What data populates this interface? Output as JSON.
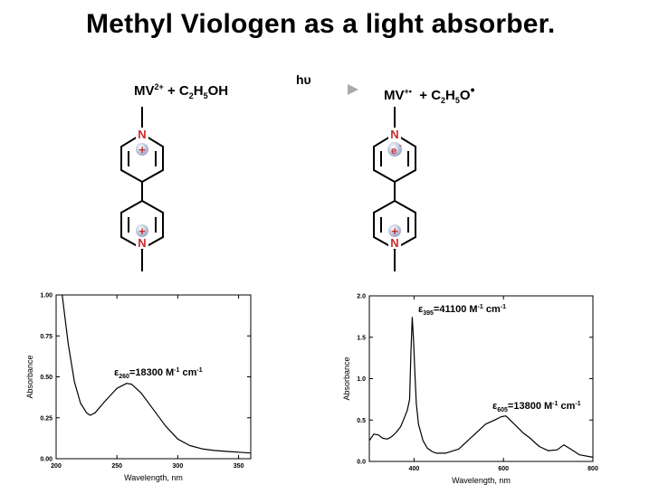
{
  "title": "Methyl Viologen as a light absorber.",
  "reaction": {
    "left_mv": "MV",
    "left_mv_charge": "2+",
    "left_plus_ethanol": "+ C",
    "sub2": "2",
    "H": "H",
    "sub5": "5",
    "OH": "OH",
    "arrow_label": "hυ",
    "right_mv": "MV",
    "right_mv_charge": "+•",
    "right_plus": "+ C",
    "O": "O",
    "radical_dot": "•"
  },
  "molecules": {
    "n_label": "N",
    "plus_label": "+",
    "electron_label": "e"
  },
  "chart_data": [
    {
      "type": "line",
      "xlabel": "Wavelength, nm",
      "ylabel": "Absorbance",
      "xlim": [
        200,
        360
      ],
      "ylim": [
        0,
        1.0
      ],
      "xticks": [
        "200",
        "250",
        "300",
        "350"
      ],
      "yticks": [
        "0.00",
        "0.25",
        "0.50",
        "0.75",
        "1.00"
      ],
      "annotation": {
        "eps": "ε",
        "sub": "260",
        "text": "=18300 M",
        "sup1": "-1",
        "cm": " cm",
        "sup2": "-1"
      },
      "series": [
        {
          "x": [
            205,
            210,
            215,
            220,
            225,
            228,
            232,
            240,
            250,
            258,
            262,
            270,
            280,
            290,
            300,
            310,
            320,
            330,
            340,
            350,
            360
          ],
          "y": [
            1.0,
            0.7,
            0.47,
            0.34,
            0.28,
            0.265,
            0.28,
            0.35,
            0.43,
            0.46,
            0.455,
            0.4,
            0.3,
            0.2,
            0.12,
            0.08,
            0.06,
            0.05,
            0.045,
            0.04,
            0.035
          ]
        }
      ]
    },
    {
      "type": "line",
      "xlabel": "Wavelength, nm",
      "ylabel": "Absorbance",
      "xlim": [
        300,
        800
      ],
      "ylim": [
        0,
        2.0
      ],
      "xticks": [
        "400",
        "600",
        "800"
      ],
      "yticks": [
        "0.0",
        "0.5",
        "1.0",
        "1.5",
        "2.0"
      ],
      "annotations": [
        {
          "eps": "ε",
          "sub": "395",
          "text": "=41100 M",
          "sup1": "-1",
          "cm": " cm",
          "sup2": "-1"
        },
        {
          "eps": "ε",
          "sub": "605",
          "text": "=13800 M",
          "sup1": "-1",
          "cm": " cm",
          "sup2": "-1"
        }
      ],
      "series": [
        {
          "x": [
            300,
            310,
            320,
            330,
            340,
            350,
            360,
            370,
            380,
            385,
            390,
            393,
            396,
            399,
            402,
            405,
            410,
            420,
            430,
            440,
            450,
            470,
            500,
            530,
            560,
            580,
            595,
            605,
            615,
            630,
            645,
            660,
            680,
            700,
            720,
            735,
            750,
            770,
            800
          ],
          "y": [
            0.25,
            0.33,
            0.32,
            0.28,
            0.27,
            0.3,
            0.35,
            0.42,
            0.55,
            0.62,
            0.75,
            1.3,
            1.74,
            1.45,
            1.05,
            0.7,
            0.45,
            0.25,
            0.16,
            0.12,
            0.1,
            0.1,
            0.15,
            0.3,
            0.45,
            0.5,
            0.54,
            0.55,
            0.5,
            0.42,
            0.34,
            0.28,
            0.18,
            0.13,
            0.14,
            0.2,
            0.15,
            0.08,
            0.05
          ]
        }
      ]
    }
  ]
}
